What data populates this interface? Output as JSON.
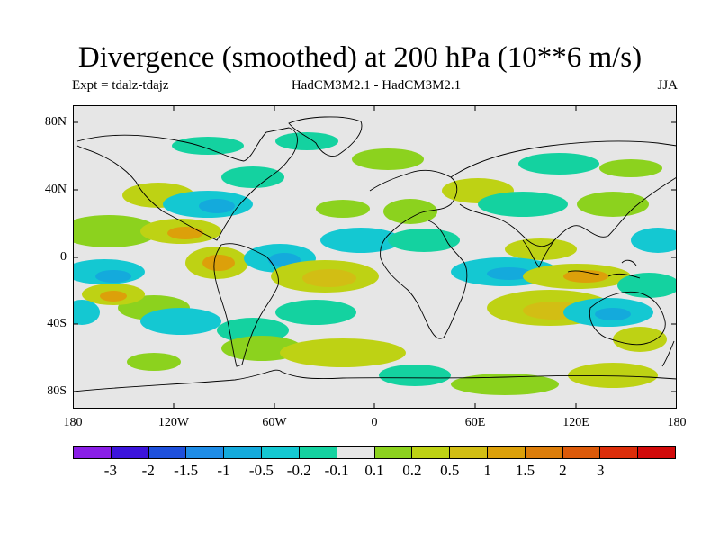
{
  "title": "Divergence (smoothed) at 200 hPa (10**6 m/s)",
  "experiment": "Expt = tdalz-tdajz",
  "models": "HadCM3M2.1 - HadCM3M2.1",
  "season": "JJA",
  "latitude_labels": [
    "80N",
    "40N",
    "0",
    "40S",
    "80S"
  ],
  "longitude_labels": [
    "180",
    "120W",
    "60W",
    "0",
    "60E",
    "120E",
    "180"
  ],
  "colorbar": {
    "labels": [
      "-3",
      "-2",
      "-1.5",
      "-1",
      "-0.5",
      "-0.2",
      "-0.1",
      "0.1",
      "0.2",
      "0.5",
      "1",
      "1.5",
      "2",
      "3"
    ],
    "colors": [
      "#8a1ee6",
      "#3c14dc",
      "#1e50dc",
      "#1e8ce6",
      "#14aadc",
      "#14c8d2",
      "#14d2a0",
      "#e6e6e6",
      "#8cd21e",
      "#bed214",
      "#d2be14",
      "#dca00a",
      "#dc7d0a",
      "#dc5a0a",
      "#dc2d0a",
      "#d20a0a"
    ]
  },
  "map_colors": {
    "background": "#e6e6e6",
    "neg_light": "#14d2a0",
    "neg_mid": "#14c8d2",
    "neg_strong": "#14aadc",
    "pos_light": "#8cd21e",
    "pos_mid": "#bed214",
    "pos_strong": "#d2be14",
    "pos_stronger": "#dca00a",
    "coast": "#000000"
  }
}
